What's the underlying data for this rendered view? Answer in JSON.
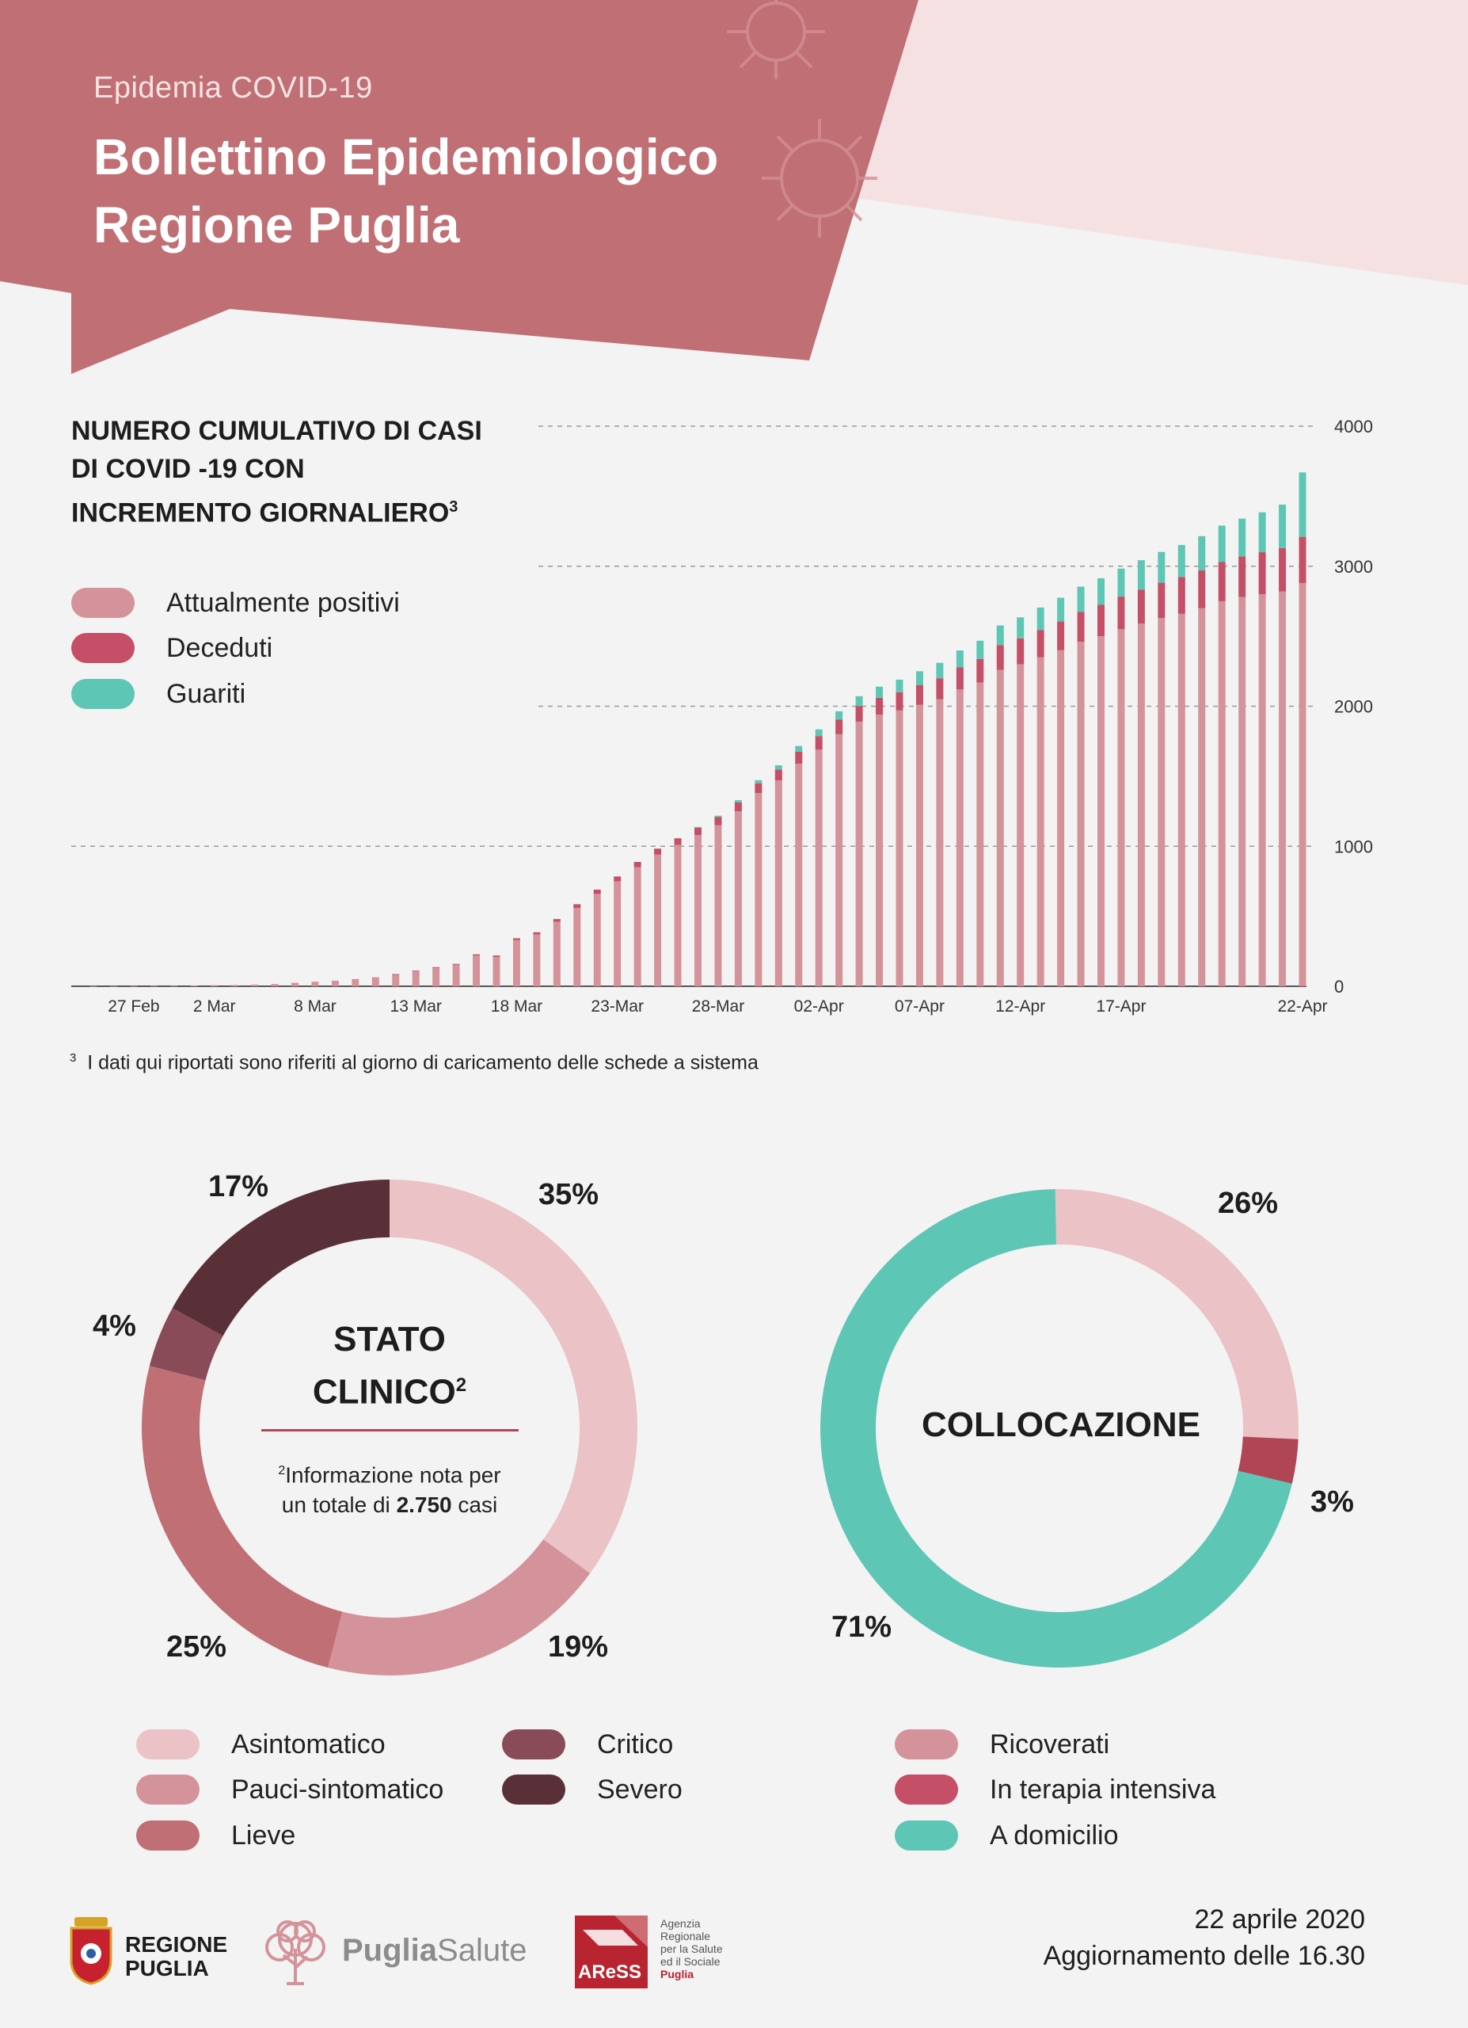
{
  "header": {
    "subtitle": "Epidemia COVID-19",
    "title_line1": "Bollettino Epidemiologico",
    "title_line2": "Regione Puglia"
  },
  "colors": {
    "header_red": "#c06f74",
    "light_pink": "#f5e1e1",
    "positivi": "#d4939a",
    "deceduti": "#c44f66",
    "guariti": "#5ec6b5",
    "asintomatico": "#ebc2c6",
    "pauci": "#d4939a",
    "lieve": "#c06f74",
    "critico": "#8a4b58",
    "severo": "#5a3038",
    "ricoverati": "#ebc2c6",
    "terapia_intensiva": "#b04556",
    "domicilio": "#5ec6b5"
  },
  "chart_data": [
    {
      "type": "bar",
      "stacked": true,
      "title_lines": [
        "NUMERO CUMULATIVO DI CASI",
        "DI COVID -19  CON",
        "INCREMENTO GIORNALIERO"
      ],
      "title_sup": "3",
      "x_tick_labels": [
        "27 Feb",
        "2 Mar",
        "8 Mar",
        "13 Mar",
        "18 Mar",
        "23-Mar",
        "28-Mar",
        "02-Apr",
        "07-Apr",
        "12-Apr",
        "17-Apr",
        "22-Apr"
      ],
      "y_ticks": [
        0,
        1000,
        2000,
        3000,
        4000
      ],
      "ylim": [
        0,
        4000
      ],
      "grid": "dashed horizontal",
      "legend_position": "top-left",
      "legend": [
        "Attualmente positivi",
        "Deceduti",
        "Guariti"
      ],
      "series": [
        {
          "name": "Attualmente positivi",
          "values": [
            1,
            1,
            2,
            3,
            3,
            6,
            8,
            9,
            12,
            16,
            25,
            33,
            40,
            52,
            65,
            86,
            110,
            134,
            155,
            220,
            210,
            330,
            370,
            460,
            560,
            660,
            750,
            850,
            940,
            1010,
            1080,
            1150,
            1250,
            1380,
            1470,
            1590,
            1690,
            1800,
            1890,
            1940,
            1970,
            2010,
            2050,
            2120,
            2170,
            2260,
            2300,
            2350,
            2400,
            2460,
            2500,
            2550,
            2590,
            2630,
            2660,
            2700,
            2750,
            2780,
            2800,
            2820,
            2880
          ]
        },
        {
          "name": "Deceduti",
          "values": [
            0,
            0,
            0,
            0,
            0,
            0,
            0,
            0,
            0,
            0,
            0,
            0,
            0,
            0,
            0,
            1,
            2,
            3,
            5,
            8,
            10,
            13,
            16,
            20,
            26,
            30,
            34,
            38,
            43,
            47,
            52,
            58,
            63,
            70,
            78,
            86,
            95,
            104,
            112,
            120,
            130,
            140,
            150,
            158,
            168,
            177,
            185,
            195,
            205,
            214,
            224,
            233,
            243,
            252,
            262,
            270,
            280,
            290,
            300,
            310,
            330
          ]
        },
        {
          "name": "Guariti",
          "values": [
            0,
            0,
            0,
            0,
            0,
            0,
            0,
            0,
            0,
            0,
            0,
            0,
            0,
            0,
            0,
            0,
            0,
            0,
            0,
            0,
            0,
            0,
            0,
            0,
            0,
            0,
            0,
            0,
            0,
            0,
            6,
            10,
            16,
            22,
            30,
            40,
            50,
            60,
            70,
            80,
            90,
            100,
            110,
            120,
            130,
            140,
            150,
            160,
            170,
            180,
            190,
            200,
            210,
            220,
            230,
            245,
            260,
            270,
            285,
            310,
            460
          ]
        }
      ]
    },
    {
      "type": "pie",
      "donut": true,
      "title": "STATO CLINICO",
      "title_sup": "2",
      "categories": [
        "Asintomatico",
        "Pauci-sintomatico",
        "Lieve",
        "Critico",
        "Severo"
      ],
      "values": [
        35,
        19,
        25,
        4,
        17
      ],
      "labels": [
        "35%",
        "19%",
        "25%",
        "4%",
        "17%"
      ]
    },
    {
      "type": "pie",
      "donut": true,
      "title": "COLLOCAZIONE",
      "categories": [
        "Ricoverati",
        "In terapia intensiva",
        "A domicilio"
      ],
      "values": [
        26,
        3,
        71
      ],
      "labels": [
        "26%",
        "3%",
        "71%"
      ]
    }
  ],
  "footnote": {
    "sup": "3",
    "text": "I dati qui riportati sono riferiti al giorno di caricamento delle schede a sistema"
  },
  "donut1": {
    "title_line1": "STATO",
    "title_line2": "CLINICO",
    "note_sup": "2",
    "note_line1": "Informazione nota per",
    "note_line2a": "un totale di ",
    "note_line2b": "2.750",
    "note_line2c": " casi"
  },
  "legends": {
    "left_col1": [
      "Asintomatico",
      "Pauci-sintomatico",
      "Lieve"
    ],
    "left_col2": [
      "Critico",
      "Severo"
    ],
    "right": [
      "Ricoverati",
      "In terapia intensiva",
      "A domicilio"
    ]
  },
  "footer": {
    "logo1_line1": "REGIONE",
    "logo1_line2": "PUGLIA",
    "logo2_bold": "Puglia",
    "logo2_light": "Salute",
    "logo3_text": "AReSS",
    "logo3_lines": [
      "Agenzia",
      "Regionale",
      "per la Salute",
      "ed il Sociale",
      "Puglia"
    ],
    "date": "22 aprile 2020",
    "update": "Aggiornamento delle 16.30"
  }
}
